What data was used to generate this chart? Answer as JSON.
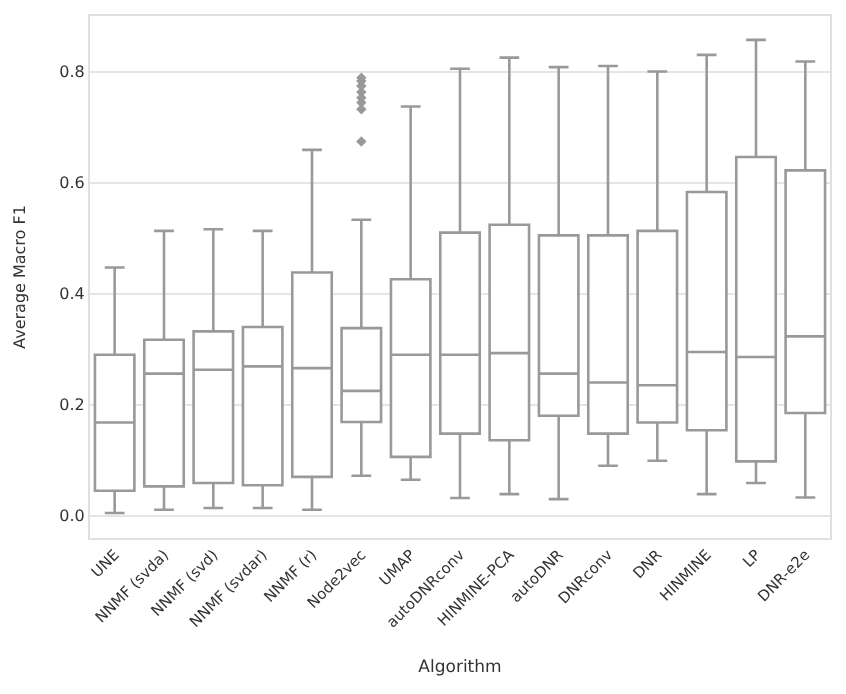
{
  "chart_data": {
    "type": "box",
    "xlabel": "Algorithm",
    "ylabel": "Average Macro F1",
    "categories": [
      "UNE",
      "NNMF (svda)",
      "NNMF (svd)",
      "NNMF (svdar)",
      "NNMF (r)",
      "Node2vec",
      "UMAP",
      "autoDNRconv",
      "HINMINE-PCA",
      "autoDNR",
      "DNRconv",
      "DNR",
      "HINMINE",
      "LP",
      "DNR-e2e"
    ],
    "color": "#999999",
    "boxes": [
      {
        "low": 0.005,
        "q1": 0.045,
        "median": 0.168,
        "q3": 0.29,
        "high": 0.447
      },
      {
        "low": 0.011,
        "q1": 0.053,
        "median": 0.256,
        "q3": 0.317,
        "high": 0.513
      },
      {
        "low": 0.014,
        "q1": 0.059,
        "median": 0.263,
        "q3": 0.332,
        "high": 0.516
      },
      {
        "low": 0.014,
        "q1": 0.055,
        "median": 0.269,
        "q3": 0.34,
        "high": 0.513
      },
      {
        "low": 0.011,
        "q1": 0.07,
        "median": 0.266,
        "q3": 0.438,
        "high": 0.659
      },
      {
        "low": 0.072,
        "q1": 0.169,
        "median": 0.225,
        "q3": 0.338,
        "high": 0.533,
        "outliers": [
          0.674,
          0.732,
          0.744,
          0.753,
          0.763,
          0.774,
          0.783,
          0.789
        ]
      },
      {
        "low": 0.065,
        "q1": 0.106,
        "median": 0.29,
        "q3": 0.426,
        "high": 0.737
      },
      {
        "low": 0.032,
        "q1": 0.148,
        "median": 0.29,
        "q3": 0.51,
        "high": 0.805
      },
      {
        "low": 0.039,
        "q1": 0.136,
        "median": 0.293,
        "q3": 0.524,
        "high": 0.825
      },
      {
        "low": 0.03,
        "q1": 0.18,
        "median": 0.256,
        "q3": 0.505,
        "high": 0.808
      },
      {
        "low": 0.09,
        "q1": 0.148,
        "median": 0.24,
        "q3": 0.505,
        "high": 0.81
      },
      {
        "low": 0.099,
        "q1": 0.168,
        "median": 0.235,
        "q3": 0.513,
        "high": 0.8
      },
      {
        "low": 0.039,
        "q1": 0.154,
        "median": 0.295,
        "q3": 0.583,
        "high": 0.83
      },
      {
        "low": 0.059,
        "q1": 0.098,
        "median": 0.286,
        "q3": 0.646,
        "high": 0.857
      },
      {
        "low": 0.033,
        "q1": 0.185,
        "median": 0.323,
        "q3": 0.622,
        "high": 0.818
      }
    ],
    "ylim": [
      -0.04,
      0.9
    ],
    "yticks": [
      {
        "value": 0,
        "label": "0.0"
      },
      {
        "value": 0.2,
        "label": "0.2"
      },
      {
        "value": 0.4,
        "label": "0.4"
      },
      {
        "value": 0.6,
        "label": "0.6"
      },
      {
        "value": 0.8,
        "label": "0.8"
      }
    ],
    "grid": "y",
    "marker": "diamond"
  }
}
